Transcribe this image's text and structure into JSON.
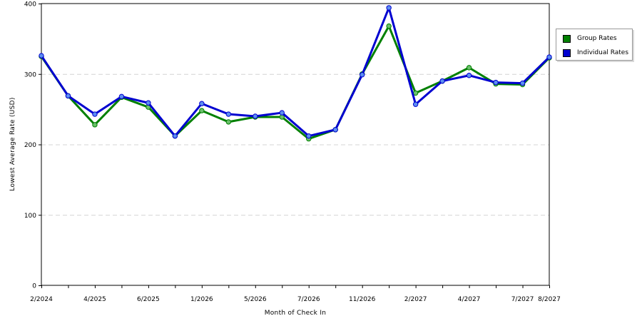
{
  "chart_data": {
    "type": "line",
    "title": "",
    "xlabel": "Month of Check In",
    "ylabel": "Lowest Average Rate (USD)",
    "ylim": [
      0,
      400
    ],
    "yticks": [
      "0",
      "100",
      "200",
      "300",
      "400"
    ],
    "xtick_labels": [
      "2/2024",
      "4/2025",
      "6/2025",
      "1/2026",
      "5/2026",
      "7/2026",
      "11/2026",
      "2/2027",
      "4/2027",
      "7/2027",
      "8/2027"
    ],
    "grid": "horizontal dashed",
    "legend_position": "right",
    "series": [
      {
        "name": "Group Rates",
        "color": "#008000",
        "values": [
          325,
          269,
          228,
          267,
          253,
          212,
          248,
          232,
          239,
          239,
          208,
          221,
          300,
          368,
          273,
          290,
          309,
          286,
          285,
          323
        ]
      },
      {
        "name": "Individual Rates",
        "color": "#0000d0",
        "values": [
          326,
          269,
          243,
          268,
          259,
          212,
          258,
          243,
          240,
          245,
          212,
          221,
          299,
          394,
          257,
          290,
          298,
          288,
          287,
          324
        ]
      }
    ]
  }
}
